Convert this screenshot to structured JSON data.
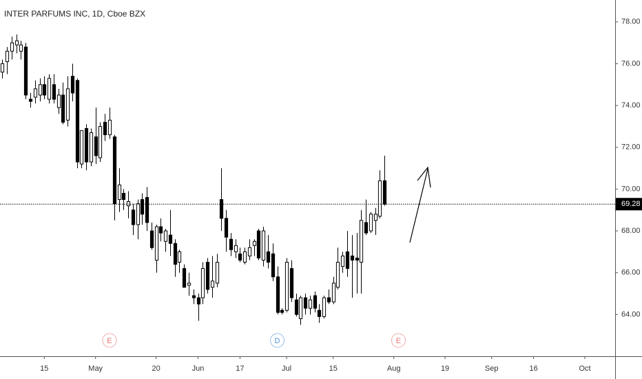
{
  "chart_data": {
    "type": "candlestick",
    "title": "INTER PARFUMS INC, 1D, Cboe BZX",
    "x": [
      0,
      1,
      2,
      3,
      4,
      5,
      6,
      7,
      8,
      9,
      10,
      11,
      12,
      13,
      14,
      15,
      16,
      17,
      18,
      19,
      20,
      21,
      22,
      23,
      24,
      25,
      26,
      27,
      28,
      29,
      30,
      31,
      32,
      33,
      34,
      35,
      36,
      37,
      38,
      39,
      40,
      41,
      42,
      43,
      44,
      45,
      46,
      47,
      48,
      49,
      50,
      51,
      52,
      53,
      54,
      55,
      56,
      57,
      58,
      59,
      60,
      61,
      62,
      63,
      64,
      65,
      66,
      67,
      68,
      69,
      70,
      71,
      72,
      73,
      74,
      75,
      76,
      77,
      78,
      79,
      80,
      81,
      82
    ],
    "open": [
      75.6,
      76.1,
      76.6,
      76.9,
      76.6,
      76.8,
      74.3,
      74.4,
      74.5,
      75.0,
      74.3,
      75.0,
      73.9,
      74.5,
      73.3,
      75.4,
      75.2,
      71.2,
      72.9,
      71.3,
      72.5,
      71.5,
      73.2,
      72.6,
      72.5,
      69.5,
      69.8,
      69.2,
      69.0,
      68.3,
      69.5,
      69.6,
      68.0,
      66.6,
      68.2,
      67.5,
      67.8,
      67.4,
      66.5,
      66.2,
      65.4,
      64.9,
      64.8,
      64.8,
      66.5,
      65.3,
      65.5,
      69.5,
      68.6,
      67.6,
      67.0,
      66.9,
      66.5,
      66.8,
      67.3,
      68.0,
      66.6,
      67.0,
      66.9,
      65.8,
      64.2,
      64.2,
      66.2,
      64.7,
      63.8,
      64.8,
      64.3,
      64.9,
      64.2,
      63.9,
      64.8,
      64.6,
      65.3,
      66.3,
      67.0,
      66.8,
      66.7,
      66.5,
      68.4,
      68.0,
      68.5,
      68.7,
      70.4
    ],
    "high": [
      76.2,
      76.8,
      77.3,
      77.4,
      77.1,
      77.0,
      74.6,
      75.2,
      75.3,
      75.4,
      75.5,
      75.5,
      74.8,
      75.1,
      75.4,
      76.0,
      75.3,
      72.8,
      73.1,
      72.9,
      73.9,
      73.2,
      73.6,
      73.9,
      72.6,
      71.0,
      70.0,
      69.9,
      69.3,
      69.5,
      69.8,
      70.1,
      68.4,
      68.3,
      68.6,
      68.1,
      69.0,
      67.6,
      67.1,
      66.4,
      66.0,
      65.2,
      65.0,
      66.5,
      66.7,
      66.8,
      66.9,
      71.0,
      69.0,
      67.9,
      67.6,
      67.2,
      67.2,
      67.6,
      67.6,
      68.1,
      68.2,
      67.8,
      67.4,
      66.3,
      64.3,
      66.7,
      66.6,
      65.0,
      64.9,
      65.0,
      64.9,
      65.1,
      64.5,
      64.9,
      65.2,
      65.8,
      67.2,
      67.0,
      68.0,
      67.8,
      67.9,
      69.0,
      69.5,
      68.9,
      69.1,
      70.9,
      71.6
    ],
    "low": [
      75.3,
      75.5,
      76.2,
      76.5,
      76.2,
      74.3,
      73.9,
      74.1,
      74.2,
      74.3,
      74.1,
      74.1,
      73.6,
      73.1,
      73.0,
      74.2,
      71.0,
      71.0,
      70.9,
      71.1,
      71.2,
      71.3,
      72.3,
      72.4,
      68.5,
      68.9,
      69.0,
      68.6,
      67.8,
      67.6,
      68.3,
      68.0,
      67.1,
      66.0,
      67.5,
      67.0,
      66.8,
      65.8,
      66.0,
      65.3,
      64.9,
      64.5,
      63.7,
      64.5,
      65.0,
      64.8,
      65.3,
      68.0,
      67.0,
      66.8,
      66.7,
      66.5,
      66.4,
      66.6,
      66.8,
      66.6,
      66.3,
      66.2,
      65.6,
      64.0,
      64.0,
      64.1,
      64.6,
      63.9,
      63.5,
      64.0,
      64.0,
      64.1,
      63.6,
      63.8,
      64.5,
      64.5,
      65.2,
      66.0,
      65.8,
      64.8,
      65.0,
      65.0,
      67.8,
      67.9,
      67.8,
      68.6,
      69.2
    ],
    "close": [
      76.0,
      76.6,
      77.0,
      77.1,
      76.9,
      74.5,
      74.2,
      74.8,
      75.0,
      74.5,
      75.3,
      74.3,
      74.5,
      73.2,
      74.8,
      74.6,
      71.3,
      72.8,
      71.3,
      72.7,
      71.6,
      73.0,
      72.6,
      73.3,
      69.3,
      70.2,
      69.5,
      69.4,
      68.3,
      69.3,
      68.8,
      68.4,
      67.2,
      68.2,
      67.9,
      68.0,
      67.4,
      66.4,
      67.0,
      65.3,
      65.5,
      64.8,
      64.5,
      66.2,
      65.2,
      65.6,
      66.5,
      68.6,
      67.7,
      67.1,
      67.3,
      66.6,
      67.0,
      67.2,
      67.5,
      66.7,
      68.0,
      66.5,
      65.8,
      64.1,
      64.1,
      66.5,
      64.8,
      64.0,
      64.8,
      64.3,
      64.7,
      64.3,
      63.9,
      64.8,
      64.6,
      65.5,
      66.5,
      66.8,
      66.2,
      66.6,
      66.6,
      68.5,
      67.9,
      68.8,
      68.8,
      70.4,
      69.28
    ],
    "up_color": "#ffffff",
    "down_color": "#000000",
    "wick_color": "#000000",
    "ylim": [
      62.0,
      79.05
    ],
    "yticks": [
      {
        "value": 64,
        "label": "64.00"
      },
      {
        "value": 66,
        "label": "66.00"
      },
      {
        "value": 68,
        "label": "68.00"
      },
      {
        "value": 70,
        "label": "70.00"
      },
      {
        "value": 72,
        "label": "72.00"
      },
      {
        "value": 74,
        "label": "74.00"
      },
      {
        "value": 76,
        "label": "76.00"
      },
      {
        "value": 78,
        "label": "78.00"
      }
    ],
    "xlim": [
      -0.5,
      131.5
    ],
    "xticks": [
      {
        "value": 9,
        "label": "15"
      },
      {
        "value": 20,
        "label": "May"
      },
      {
        "value": 33,
        "label": "20"
      },
      {
        "value": 42,
        "label": "Jun"
      },
      {
        "value": 51,
        "label": "17"
      },
      {
        "value": 61,
        "label": "Jul"
      },
      {
        "value": 71,
        "label": "15"
      },
      {
        "value": 84,
        "label": "Aug"
      },
      {
        "value": 95,
        "label": "19"
      },
      {
        "value": 105,
        "label": "Sep"
      },
      {
        "value": 114,
        "label": "16"
      },
      {
        "value": 125,
        "label": "Oct"
      }
    ],
    "last_price": 69.28,
    "events": [
      {
        "label": "E",
        "x": 23,
        "color": "#e57373"
      },
      {
        "label": "D",
        "x": 59,
        "color": "#4a90d9"
      },
      {
        "label": "E",
        "x": 85,
        "color": "#e57373"
      }
    ]
  }
}
